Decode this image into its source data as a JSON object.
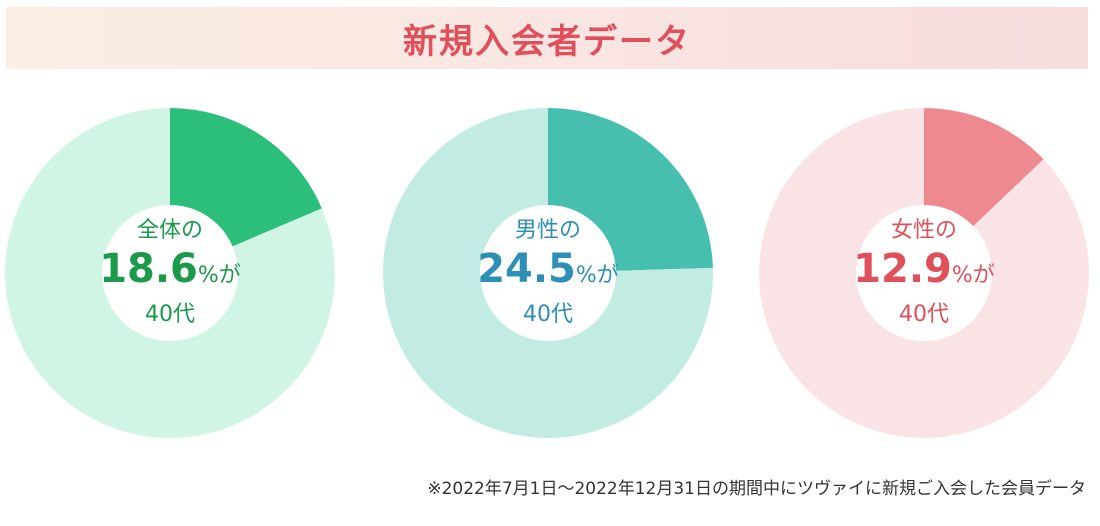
{
  "title": "新規入会者データ",
  "note": "※2022年7月1日〜2022年12月31日の期間中にツヴァイに新規ご入会した会員データ",
  "colors": {
    "title": "#e0505a",
    "banner_left": "#fbeee3",
    "banner_right": "#f7dcdc"
  },
  "chart_data": [
    {
      "type": "pie",
      "title": "",
      "label": "全体の",
      "percent_text": "18.6",
      "suffix": "%が",
      "age": "40代",
      "values": [
        18.6,
        81.4
      ],
      "colors": [
        "#2bbf7a",
        "#d1f5e4"
      ],
      "text_color": "#1a9a4a"
    },
    {
      "type": "pie",
      "title": "",
      "label": "男性の",
      "percent_text": "24.5",
      "suffix": "%が",
      "age": "40代",
      "values": [
        24.5,
        75.5
      ],
      "colors": [
        "#47bfae",
        "#c2ebe4"
      ],
      "text_color": "#2e8fb6"
    },
    {
      "type": "pie",
      "title": "",
      "label": "女性の",
      "percent_text": "12.9",
      "suffix": "%が",
      "age": "40代",
      "values": [
        12.9,
        87.1
      ],
      "colors": [
        "#ee8a8f",
        "#fae3e4"
      ],
      "text_color": "#e0505a"
    }
  ]
}
